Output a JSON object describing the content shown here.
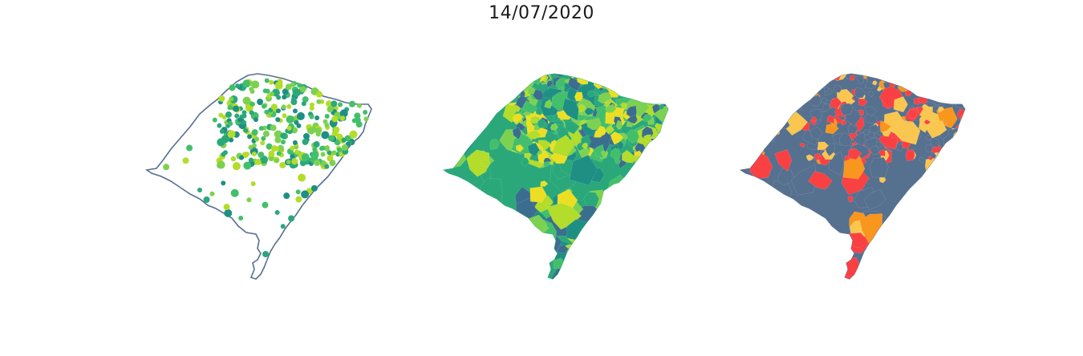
{
  "title": "14/07/2020",
  "colors": {
    "outline": "#56708f",
    "base_map": "#56708f",
    "viridis_dark": "#1f8f84",
    "viridis_mid": "#2aa87a",
    "viridis_green": "#43bf6b",
    "viridis_light": "#7dd150",
    "viridis_yellowgreen": "#b3dc2b",
    "viridis_yellow": "#ecdf22",
    "viridis_blue": "#3b6e8e",
    "cat_red": "#f94144",
    "cat_light_orange": "#f9c74f",
    "cat_orange": "#f8961e"
  },
  "panels": [
    {
      "name": "points-map",
      "style": "outline with proportional circles"
    },
    {
      "name": "choropleth-viridis",
      "style": "filled municipalities, viridis scale"
    },
    {
      "name": "choropleth-categorical",
      "style": "filled municipalities, categorical"
    }
  ]
}
